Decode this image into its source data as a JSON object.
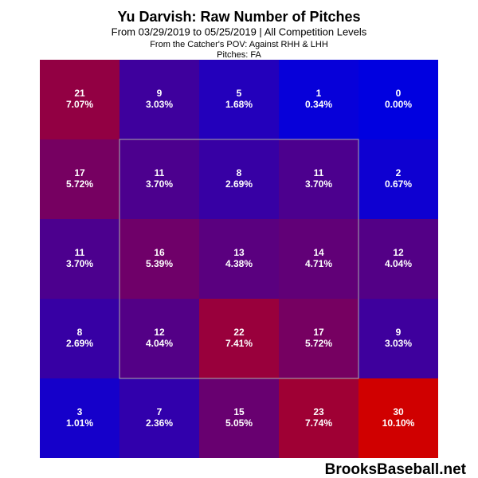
{
  "chart_data": {
    "type": "heatmap",
    "title": "Yu Darvish: Raw Number of Pitches",
    "subtitle": "From 03/29/2019 to 05/25/2019 | All Competition Levels",
    "note_pov": "From the Catcher's POV:  Against RHH & LHH",
    "note_pitches": "Pitches:  FA",
    "footer": "BrooksBaseball.net",
    "values": [
      [
        21,
        9,
        5,
        1,
        0
      ],
      [
        17,
        11,
        8,
        11,
        2
      ],
      [
        11,
        16,
        13,
        14,
        12
      ],
      [
        8,
        12,
        22,
        17,
        9
      ],
      [
        3,
        7,
        15,
        23,
        30
      ]
    ],
    "percents": [
      [
        7.07,
        3.03,
        1.68,
        0.34,
        0.0
      ],
      [
        5.72,
        3.7,
        2.69,
        3.7,
        0.67
      ],
      [
        3.7,
        5.39,
        4.38,
        4.71,
        4.04
      ],
      [
        2.69,
        4.04,
        7.41,
        5.72,
        3.03
      ],
      [
        1.01,
        2.36,
        5.05,
        7.74,
        10.1
      ]
    ],
    "percent_labels": [
      [
        "7.07%",
        "3.03%",
        "1.68%",
        "0.34%",
        "0.00%"
      ],
      [
        "5.72%",
        "3.70%",
        "2.69%",
        "3.70%",
        "0.67%"
      ],
      [
        "3.70%",
        "5.39%",
        "4.38%",
        "4.71%",
        "4.04%"
      ],
      [
        "2.69%",
        "4.04%",
        "7.41%",
        "5.72%",
        "3.03%"
      ],
      [
        "1.01%",
        "2.36%",
        "5.05%",
        "7.74%",
        "10.10%"
      ]
    ],
    "color_low": [
      0,
      0,
      224
    ],
    "color_high": [
      208,
      0,
      0
    ]
  }
}
